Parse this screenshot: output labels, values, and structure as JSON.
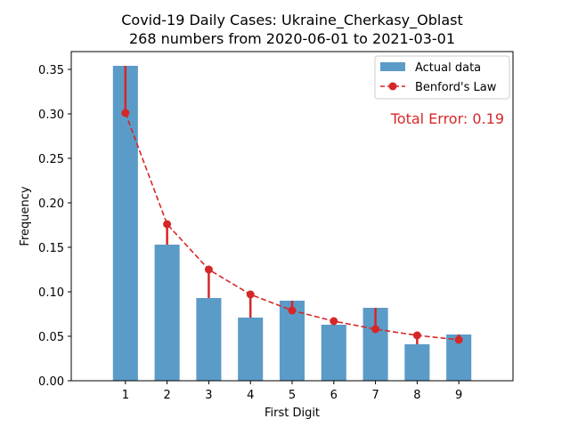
{
  "chart_data": {
    "type": "bar",
    "title": "Covid-19 Daily Cases: Ukraine_Cherkasy_Oblast",
    "subtitle": "268 numbers from 2020-06-01 to 2021-03-01",
    "xlabel": "First Digit",
    "ylabel": "Frequency",
    "categories": [
      "1",
      "2",
      "3",
      "4",
      "5",
      "6",
      "7",
      "8",
      "9"
    ],
    "ylim": [
      0,
      0.37
    ],
    "yticks": [
      "0.00",
      "0.05",
      "0.10",
      "0.15",
      "0.20",
      "0.25",
      "0.30",
      "0.35"
    ],
    "grid": false,
    "legend_position": "top-right",
    "series": [
      {
        "name": "Actual data",
        "kind": "bar",
        "color": "#5b9bc8",
        "values": [
          0.354,
          0.153,
          0.093,
          0.071,
          0.09,
          0.063,
          0.082,
          0.041,
          0.052
        ]
      },
      {
        "name": "Benford's Law",
        "kind": "line-dashed-markers",
        "color": "#d62728",
        "values": [
          0.301,
          0.176,
          0.125,
          0.097,
          0.079,
          0.067,
          0.058,
          0.051,
          0.046
        ]
      }
    ],
    "annotation": {
      "text": "Total Error: 0.19",
      "color": "#d62728",
      "position": "top-right"
    }
  }
}
